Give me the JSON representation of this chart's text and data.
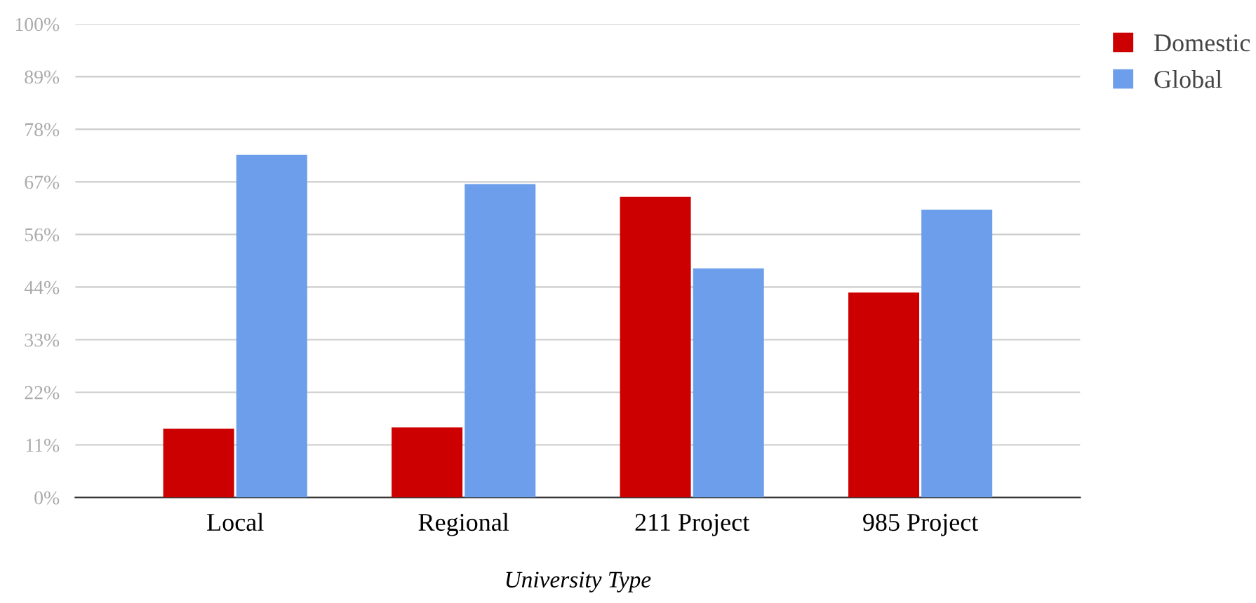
{
  "chart_data": {
    "type": "bar",
    "xlabel": "University Type",
    "categories": [
      "Local",
      "Regional",
      "211 Project",
      "985 Project"
    ],
    "series": [
      {
        "name": "Domestic",
        "color": "#cc0000",
        "values": [
          14.5,
          14.8,
          63.5,
          43.3
        ]
      },
      {
        "name": "Global",
        "color": "#6d9eeb",
        "values": [
          72.4,
          66.2,
          48.4,
          60.8
        ]
      }
    ],
    "ylim": [
      0,
      100
    ],
    "yticks": [
      {
        "value": 0,
        "label": "0%"
      },
      {
        "value": 11.11,
        "label": "11%"
      },
      {
        "value": 22.22,
        "label": "22%"
      },
      {
        "value": 33.33,
        "label": "33%"
      },
      {
        "value": 44.44,
        "label": "44%"
      },
      {
        "value": 55.56,
        "label": "56%"
      },
      {
        "value": 66.67,
        "label": "67%"
      },
      {
        "value": 77.78,
        "label": "78%"
      },
      {
        "value": 88.89,
        "label": "89%"
      },
      {
        "value": 100,
        "label": "100%"
      }
    ],
    "grid": "y",
    "legend": "top right"
  }
}
